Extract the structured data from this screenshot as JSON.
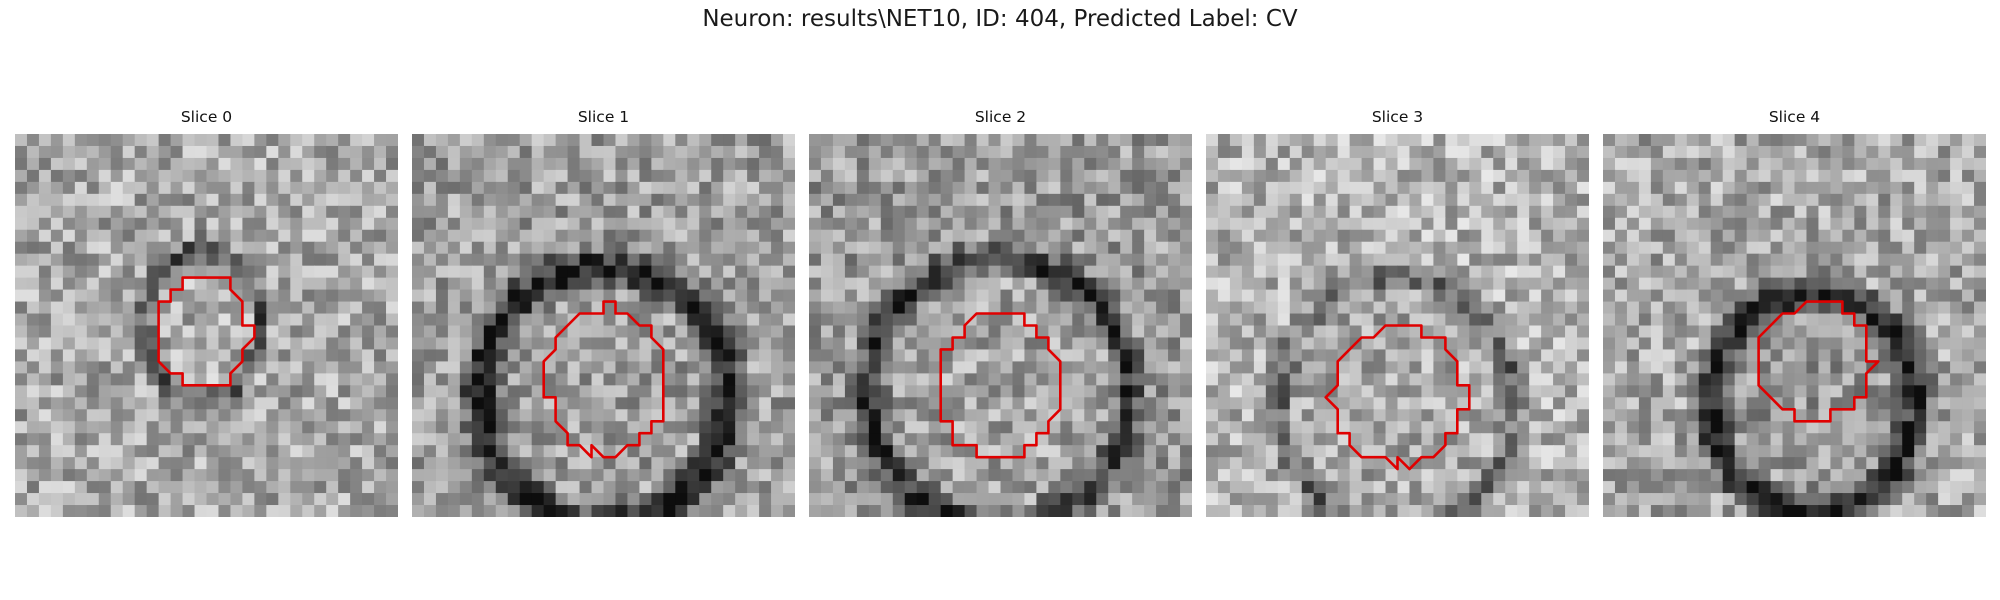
{
  "figure": {
    "title": "Neuron: results\\NET10, ID: 404, Predicted Label: CV",
    "contour_color": "#e00000"
  },
  "slices": [
    {
      "title": "Slice 0"
    },
    {
      "title": "Slice 1"
    },
    {
      "title": "Slice 2"
    },
    {
      "title": "Slice 3"
    },
    {
      "title": "Slice 4"
    }
  ]
}
